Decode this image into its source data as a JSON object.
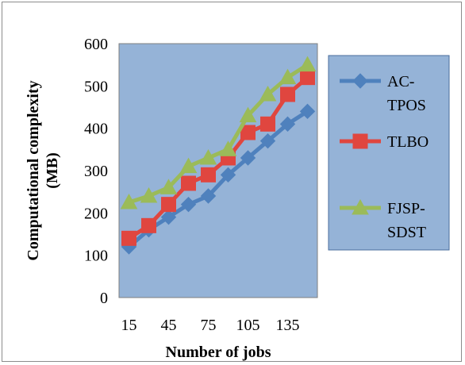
{
  "chart_data": {
    "type": "line",
    "title": "",
    "xlabel": "Number of jobs",
    "ylabel": [
      "Computational complexity",
      "(MB)"
    ],
    "x": [
      15,
      30,
      45,
      60,
      75,
      90,
      105,
      120,
      135,
      150
    ],
    "x_tick_labels": [
      "15",
      "45",
      "75",
      "105",
      "135"
    ],
    "x_tick_values": [
      15,
      45,
      75,
      105,
      135
    ],
    "y_ticks": [
      0,
      100,
      200,
      300,
      400,
      500,
      600
    ],
    "ylim": [
      0,
      600
    ],
    "grid": false,
    "legend_position": "right",
    "plot_background": "#95b3d7",
    "series": [
      {
        "name": [
          "AC-",
          "TPOS"
        ],
        "color": "#4f81bd",
        "marker": "diamond",
        "values": [
          120,
          160,
          190,
          220,
          240,
          290,
          330,
          370,
          410,
          440
        ]
      },
      {
        "name": [
          "TLBO"
        ],
        "color": "#e0463f",
        "marker": "square",
        "values": [
          140,
          170,
          220,
          270,
          290,
          330,
          390,
          410,
          480,
          520
        ]
      },
      {
        "name": [
          "FJSP-",
          "SDST"
        ],
        "color": "#9bbb59",
        "marker": "triangle",
        "values": [
          225,
          240,
          260,
          310,
          330,
          350,
          430,
          480,
          520,
          550
        ]
      }
    ]
  }
}
